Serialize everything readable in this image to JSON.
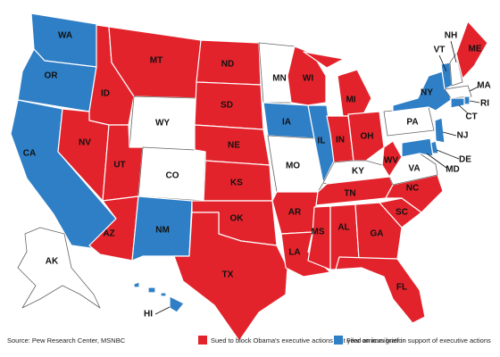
{
  "map": {
    "source": "Source: Pew Research Center, MSNBC",
    "legend": [
      {
        "label": "Sued to block Obama's executive actions last year on immigration",
        "color": "#e3232c"
      },
      {
        "label": "Filed amicus brief in support of executive actions",
        "color": "#2f7fc6"
      }
    ],
    "states": [
      {
        "label": "WA",
        "color": "#2f7fc6"
      },
      {
        "label": "OR",
        "color": "#2f7fc6"
      },
      {
        "label": "CA",
        "color": "#2f7fc6"
      },
      {
        "label": "ID",
        "color": "#e3232c"
      },
      {
        "label": "NV",
        "color": "#e3232c"
      },
      {
        "label": "MT",
        "color": "#e3232c"
      },
      {
        "label": "WY",
        "color": "#ffffff"
      },
      {
        "label": "UT",
        "color": "#e3232c"
      },
      {
        "label": "AZ",
        "color": "#e3232c"
      },
      {
        "label": "CO",
        "color": "#ffffff"
      },
      {
        "label": "NM",
        "color": "#2f7fc6"
      },
      {
        "label": "ND",
        "color": "#e3232c"
      },
      {
        "label": "SD",
        "color": "#e3232c"
      },
      {
        "label": "NE",
        "color": "#e3232c"
      },
      {
        "label": "KS",
        "color": "#e3232c"
      },
      {
        "label": "OK",
        "color": "#e3232c"
      },
      {
        "label": "TX",
        "color": "#e3232c"
      },
      {
        "label": "MN",
        "color": "#ffffff"
      },
      {
        "label": "IA",
        "color": "#2f7fc6"
      },
      {
        "label": "MO",
        "color": "#ffffff"
      },
      {
        "label": "AR",
        "color": "#e3232c"
      },
      {
        "label": "LA",
        "color": "#e3232c"
      },
      {
        "label": "WI",
        "color": "#e3232c"
      },
      {
        "label": "IL",
        "color": "#2f7fc6"
      },
      {
        "label": "MI",
        "color": "#e3232c"
      },
      {
        "label": "IN",
        "color": "#e3232c"
      },
      {
        "label": "OH",
        "color": "#e3232c"
      },
      {
        "label": "KY",
        "color": "#ffffff"
      },
      {
        "label": "TN",
        "color": "#e3232c"
      },
      {
        "label": "MS",
        "color": "#e3232c"
      },
      {
        "label": "AL",
        "color": "#e3232c"
      },
      {
        "label": "GA",
        "color": "#e3232c"
      },
      {
        "label": "FL",
        "color": "#e3232c"
      },
      {
        "label": "SC",
        "color": "#e3232c"
      },
      {
        "label": "NC",
        "color": "#e3232c"
      },
      {
        "label": "VA",
        "color": "#ffffff"
      },
      {
        "label": "WV",
        "color": "#e3232c"
      },
      {
        "label": "PA",
        "color": "#ffffff"
      },
      {
        "label": "NY",
        "color": "#2f7fc6"
      },
      {
        "label": "VT",
        "color": "#2f7fc6"
      },
      {
        "label": "NH",
        "color": "#ffffff"
      },
      {
        "label": "ME",
        "color": "#e3232c"
      },
      {
        "label": "MA",
        "color": "#ffffff"
      },
      {
        "label": "RI",
        "color": "#2f7fc6"
      },
      {
        "label": "CT",
        "color": "#2f7fc6"
      },
      {
        "label": "NJ",
        "color": "#2f7fc6"
      },
      {
        "label": "DE",
        "color": "#2f7fc6"
      },
      {
        "label": "MD",
        "color": "#2f7fc6"
      },
      {
        "label": "AK",
        "color": "#ffffff"
      },
      {
        "label": "HI",
        "color": "#2f7fc6"
      }
    ]
  }
}
